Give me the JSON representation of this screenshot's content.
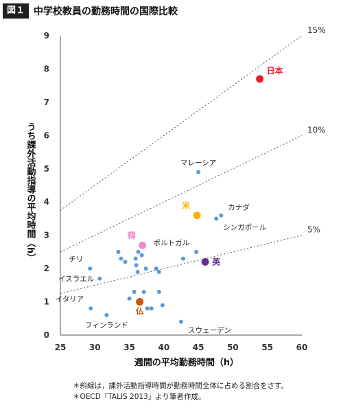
{
  "figure": {
    "badge": "図１",
    "title": "中学校教員の勤務時間の国際比較"
  },
  "notes": [
    "＊斜線は，課外活動指導時間が勤務時間全体に占める割合をさす。",
    "＊OECD「TALIS 2013」より筆者作成。"
  ],
  "chart_data": {
    "type": "scatter",
    "title": "中学校教員の勤務時間の国際比較",
    "xlabel": "週間の平均勤務時間（h）",
    "ylabel": "うち課外活動指導の平均時間（h）",
    "xlim": [
      25,
      60
    ],
    "ylim": [
      0,
      9
    ],
    "xticks": [
      25,
      30,
      35,
      40,
      45,
      50,
      55,
      60
    ],
    "yticks": [
      0,
      1,
      2,
      3,
      4,
      5,
      6,
      7,
      8,
      9
    ],
    "grid": false,
    "reference_lines": [
      {
        "label": "15%",
        "ratio": 0.15
      },
      {
        "label": "10%",
        "ratio": 0.1
      },
      {
        "label": "5%",
        "ratio": 0.05
      }
    ],
    "default_color": "#5b9bd5",
    "points": [
      {
        "x": 53.9,
        "y": 7.7,
        "label": "日本",
        "color": "#ee1c25",
        "highlight": true,
        "label_pos": "above-right"
      },
      {
        "x": 44.8,
        "y": 3.6,
        "label": "米",
        "color": "#f7b500",
        "highlight": true,
        "label_pos": "above-left"
      },
      {
        "x": 36.9,
        "y": 2.7,
        "label": "韓",
        "color": "#ee8ccf",
        "highlight": true,
        "label_pos": "above-left"
      },
      {
        "x": 46.0,
        "y": 2.2,
        "label": "英",
        "color": "#6a2c91",
        "highlight": true,
        "label_pos": "right"
      },
      {
        "x": 36.5,
        "y": 1.0,
        "label": "仏",
        "color": "#c55a11",
        "highlight": true,
        "label_pos": "below"
      },
      {
        "x": 45.0,
        "y": 4.9,
        "label": "マレーシア",
        "label_pos": "above"
      },
      {
        "x": 48.3,
        "y": 3.6,
        "label": "カナダ",
        "label_pos": "above-right"
      },
      {
        "x": 47.6,
        "y": 3.5,
        "label": "シンガポール",
        "label_pos": "below-right"
      },
      {
        "x": 44.7,
        "y": 2.5,
        "label": "ポルトガル",
        "label_pos": "above-left"
      },
      {
        "x": 29.3,
        "y": 2.0,
        "label": "チリ",
        "label_pos": "above-left"
      },
      {
        "x": 30.7,
        "y": 1.7,
        "label": "イスラエル",
        "label_pos": "left"
      },
      {
        "x": 29.4,
        "y": 0.8,
        "label": "イタリア",
        "label_pos": "above-left"
      },
      {
        "x": 31.7,
        "y": 0.6,
        "label": "フィンランド",
        "label_pos": "below"
      },
      {
        "x": 42.5,
        "y": 0.4,
        "label": "スウェーデン",
        "label_pos": "below-right"
      },
      {
        "x": 33.4,
        "y": 2.5
      },
      {
        "x": 33.8,
        "y": 2.3
      },
      {
        "x": 34.4,
        "y": 2.2
      },
      {
        "x": 35.9,
        "y": 2.3
      },
      {
        "x": 36.3,
        "y": 2.5
      },
      {
        "x": 36.8,
        "y": 2.4
      },
      {
        "x": 36.0,
        "y": 2.1
      },
      {
        "x": 36.2,
        "y": 1.9
      },
      {
        "x": 37.4,
        "y": 2.0
      },
      {
        "x": 38.9,
        "y": 2.0
      },
      {
        "x": 39.3,
        "y": 1.9
      },
      {
        "x": 42.8,
        "y": 2.3
      },
      {
        "x": 35.7,
        "y": 1.3
      },
      {
        "x": 37.1,
        "y": 1.3
      },
      {
        "x": 39.3,
        "y": 1.3
      },
      {
        "x": 35.0,
        "y": 1.1
      },
      {
        "x": 37.6,
        "y": 0.8
      },
      {
        "x": 38.2,
        "y": 0.8
      },
      {
        "x": 39.8,
        "y": 0.9
      }
    ]
  }
}
